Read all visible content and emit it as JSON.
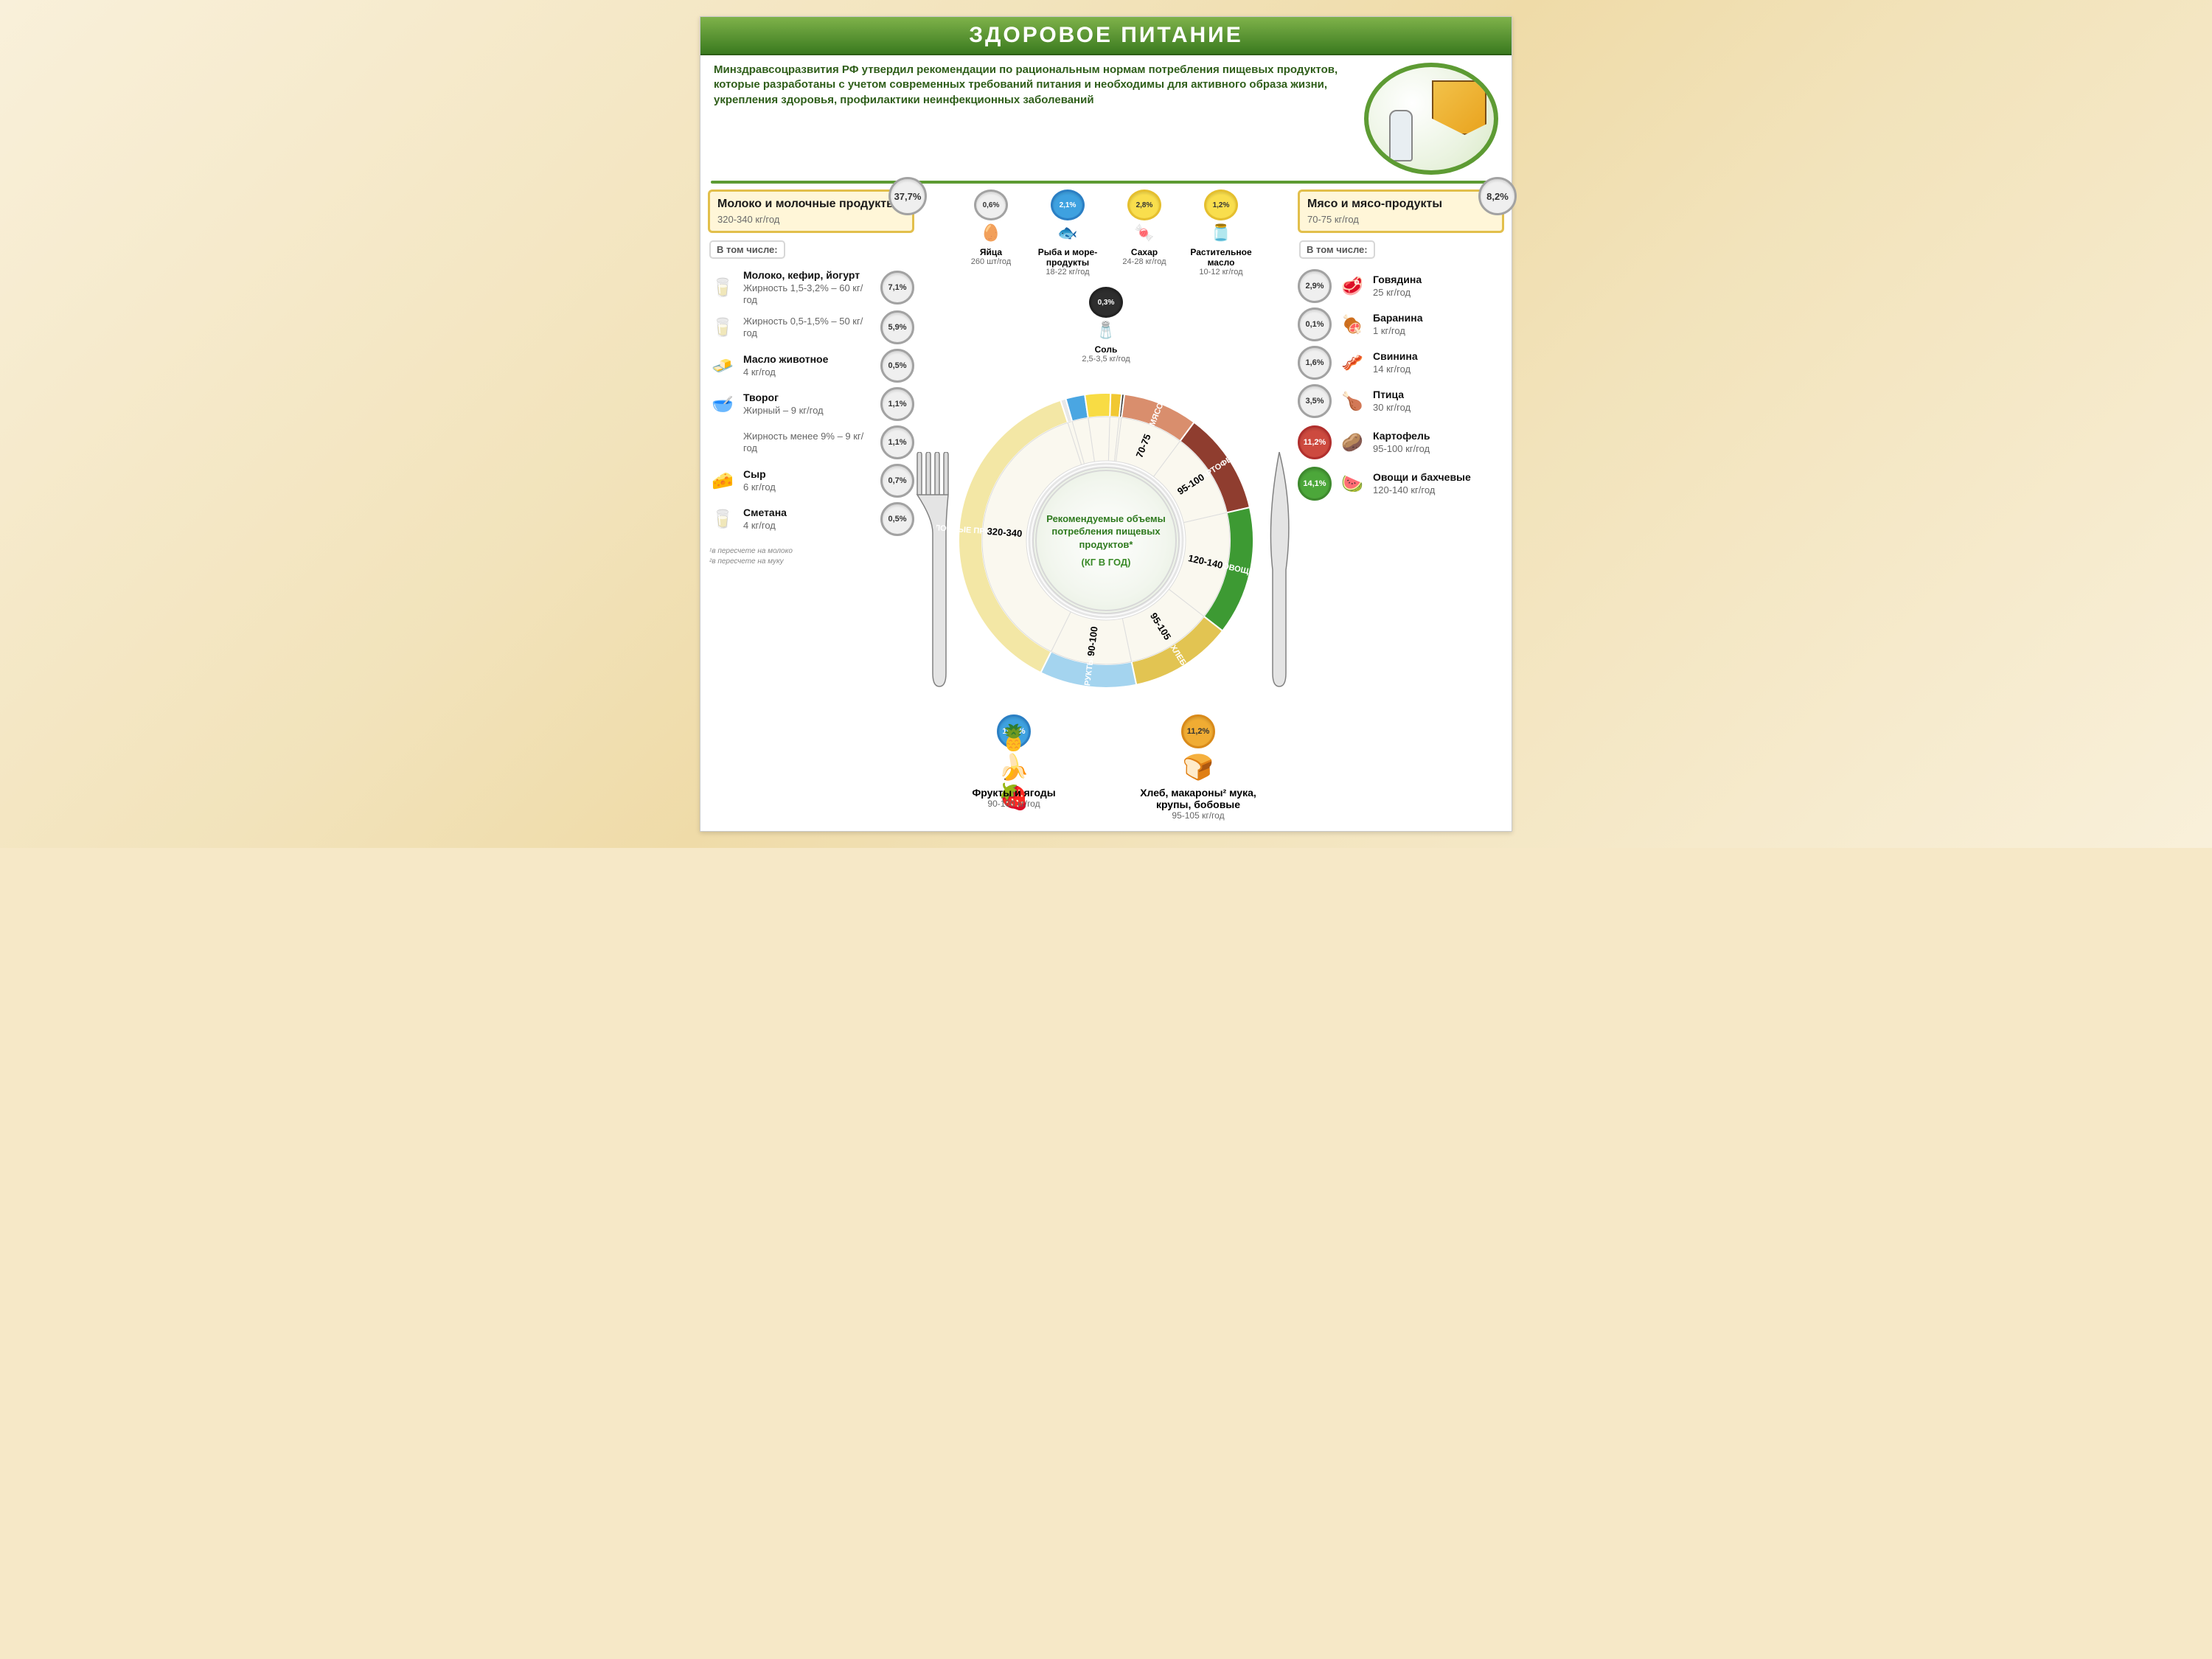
{
  "title": "ЗДОРОВОЕ ПИТАНИЕ",
  "intro": "Минздравсоцразвития РФ утвердил рекомендации по рациональным нормам потребления пищевых продуктов, которые разработаны с учетом современных требований питания и необходимы для активного образа жизни, укрепления здоровья, профилактики неинфекционных заболеваний",
  "plate_center_l1": "Рекомендуемые объемы потребления пищевых продуктов*",
  "plate_center_l2": "(КГ В ГОД)",
  "colors": {
    "ring_dairy": "#f3e7a5",
    "ring_eggs": "#f4f4f4",
    "ring_fish": "#4aa6e2",
    "ring_sugar": "#f8dc44",
    "ring_oil": "#f1c832",
    "ring_salt": "#2e2e2e",
    "ring_meat": "#d98e6d",
    "ring_potato": "#8f3d2f",
    "ring_veg": "#3d9a33",
    "ring_bread": "#e2c452",
    "ring_fruit": "#a4d4ef",
    "green": "#5d9b33"
  },
  "segments": [
    {
      "key": "dairy",
      "label": "МОЛОЧНЫЕ ПРОДУКТЫ",
      "value": "320-340",
      "pct": 37.7,
      "color": "#f3e7a5",
      "text": "#6b5a12"
    },
    {
      "key": "fruit",
      "label": "ФРУКТЫ",
      "value": "90-100",
      "pct": 10.6,
      "color": "#a4d4ef",
      "text": "#fff"
    },
    {
      "key": "bread",
      "label": "ХЛЕБ",
      "value": "95-105",
      "pct": 11.2,
      "color": "#e2c452",
      "text": "#6b5a12"
    },
    {
      "key": "veg",
      "label": "ОВОЩИ",
      "value": "120-140",
      "pct": 14.1,
      "color": "#3d9a33",
      "text": "#fff"
    },
    {
      "key": "potato",
      "label": "КАРТОФЕЛЬ",
      "value": "95-100",
      "pct": 11.2,
      "color": "#8f3d2f",
      "text": "#fff"
    },
    {
      "key": "meat",
      "label": "МЯСО",
      "value": "70-75",
      "pct": 8.2,
      "color": "#d98e6d",
      "text": "#fff"
    },
    {
      "key": "salt",
      "label": "",
      "value": "",
      "pct": 0.3,
      "color": "#2e2e2e",
      "text": "#fff"
    },
    {
      "key": "oil",
      "label": "",
      "value": "",
      "pct": 1.2,
      "color": "#f1c832",
      "text": "#fff"
    },
    {
      "key": "sugar",
      "label": "",
      "value": "",
      "pct": 2.8,
      "color": "#f8dc44",
      "text": "#fff"
    },
    {
      "key": "fish",
      "label": "",
      "value": "",
      "pct": 2.1,
      "color": "#4aa6e2",
      "text": "#fff"
    },
    {
      "key": "eggs",
      "label": "",
      "value": "",
      "pct": 0.6,
      "color": "#e8e8e8",
      "text": "#fff"
    }
  ],
  "left_main": {
    "title": "Молоко и молочные продукты¹",
    "amount": "320-340 кг/год",
    "pct": "37,7%"
  },
  "left_sub_header": "В том числе:",
  "left_items": [
    {
      "name": "Молоко, кефир, йогурт",
      "desc": "Жирность 1,5-3,2% – 60 кг/год",
      "pct": "7,1%",
      "icon": "🥛"
    },
    {
      "name": "",
      "desc": "Жирность 0,5-1,5% – 50 кг/год",
      "pct": "5,9%",
      "icon": "🥛"
    },
    {
      "name": "Масло животное",
      "desc": "4 кг/год",
      "pct": "0,5%",
      "icon": "🧈"
    },
    {
      "name": "Творог",
      "desc": "Жирный – 9 кг/год",
      "pct": "1,1%",
      "icon": "🥣"
    },
    {
      "name": "",
      "desc": "Жирность менее 9% – 9 кг/год",
      "pct": "1,1%",
      "icon": ""
    },
    {
      "name": "Сыр",
      "desc": "6 кг/год",
      "pct": "0,7%",
      "icon": "🧀"
    },
    {
      "name": "Сметана",
      "desc": "4 кг/год",
      "pct": "0,5%",
      "icon": "🥛"
    }
  ],
  "top_items": [
    {
      "name": "Яйца",
      "desc": "260 шт/год",
      "pct": "0,6%",
      "pct_cls": "grey",
      "icon": "🥚"
    },
    {
      "name": "Рыба и море-продукты",
      "desc": "18-22 кг/год",
      "pct": "2,1%",
      "pct_cls": "blue",
      "icon": "🐟"
    },
    {
      "name": "Сахар",
      "desc": "24-28 кг/год",
      "pct": "2,8%",
      "pct_cls": "yellow",
      "icon": "🍬"
    },
    {
      "name": "Растительное масло",
      "desc": "10-12 кг/год",
      "pct": "1,2%",
      "pct_cls": "yellow",
      "icon": "🫙"
    },
    {
      "name": "Соль",
      "desc": "2,5-3,5 кг/год",
      "pct": "0,3%",
      "pct_cls": "black",
      "icon": "🧂"
    }
  ],
  "right_main": {
    "title": "Мясо и мясо-продукты",
    "amount": "70-75 кг/год",
    "pct": "8,2%"
  },
  "right_sub_header": "В том числе:",
  "right_items": [
    {
      "name": "Говядина",
      "desc": "25 кг/год",
      "pct": "2,9%",
      "icon": "🥩"
    },
    {
      "name": "Баранина",
      "desc": "1 кг/год",
      "pct": "0,1%",
      "icon": "🍖"
    },
    {
      "name": "Свинина",
      "desc": "14 кг/год",
      "pct": "1,6%",
      "icon": "🥓"
    },
    {
      "name": "Птица",
      "desc": "30 кг/год",
      "pct": "3,5%",
      "icon": "🍗"
    }
  ],
  "right_bottom": [
    {
      "name": "Картофель",
      "desc": "95-100 кг/год",
      "pct": "11,2%",
      "pct_cls": "red",
      "icon": "🥔"
    },
    {
      "name": "Овощи и бахчевые",
      "desc": "120-140 кг/год",
      "pct": "14,1%",
      "pct_cls": "green",
      "icon": "🍉"
    }
  ],
  "bottom_left": {
    "name": "Фрукты и ягоды",
    "desc": "90-100 кг/год",
    "pct": "10,6%",
    "pct_cls": "blue",
    "icon": "🍍🍌🍓"
  },
  "bottom_right": {
    "name": "Хлеб, макароны² мука, крупы, бобовые",
    "desc": "95-105 кг/год",
    "pct": "11,2%",
    "pct_cls": "orange",
    "icon": "🍞"
  },
  "footnote1": "¹в пересчете на молоко",
  "footnote2": "²в пересчете на муку"
}
